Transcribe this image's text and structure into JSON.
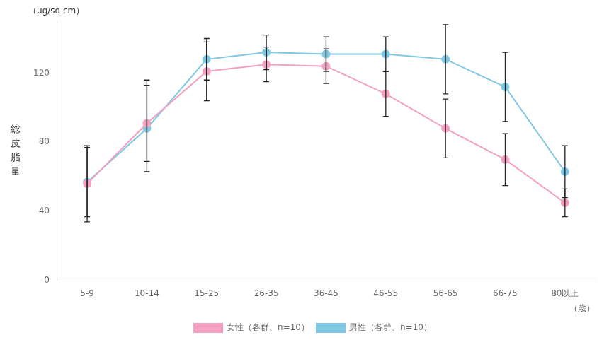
{
  "chart_data": {
    "type": "line",
    "categories": [
      "5-9",
      "10-14",
      "15-25",
      "26-35",
      "36-45",
      "46-55",
      "56-65",
      "66-75",
      "80以上"
    ],
    "series": [
      {
        "name": "女性（各群、n=10）",
        "color": "#f4a0c0",
        "values": [
          56,
          91,
          121,
          125,
          124,
          108,
          88,
          70,
          45
        ],
        "err_lower": [
          22,
          22,
          17,
          10,
          10,
          13,
          17,
          15,
          8
        ],
        "err_upper": [
          22,
          25,
          17,
          10,
          10,
          13,
          17,
          15,
          8
        ]
      },
      {
        "name": "男性（各群、n=10）",
        "color": "#7ec8e3",
        "values": [
          57,
          88,
          128,
          132,
          131,
          131,
          128,
          112,
          63
        ],
        "err_lower": [
          20,
          25,
          12,
          10,
          10,
          10,
          20,
          20,
          15
        ],
        "err_upper": [
          20,
          25,
          12,
          10,
          10,
          10,
          20,
          20,
          15
        ]
      }
    ],
    "ylabel": "総\n皮\n脂\n量",
    "xlabel": "（歳）",
    "annotations": [
      "（μg/sq cm）"
    ],
    "ylim": [
      0,
      150
    ],
    "yticks": [
      0,
      40,
      80,
      120
    ],
    "legend": "bottom",
    "marker": "circle",
    "grid": false
  }
}
